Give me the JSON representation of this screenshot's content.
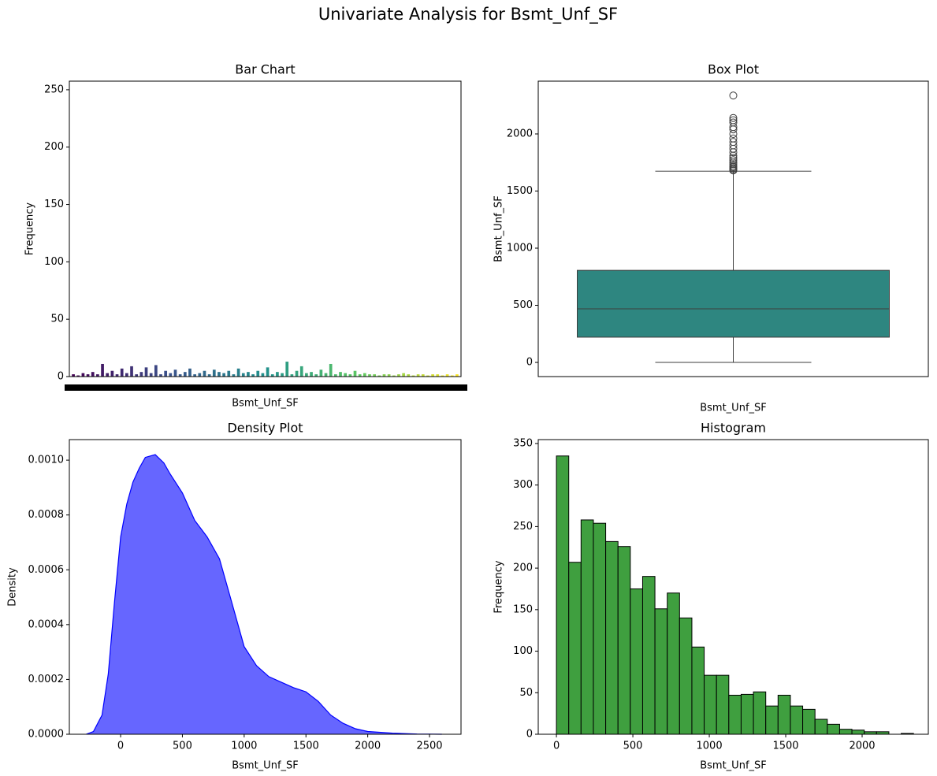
{
  "title": "Univariate Analysis for Bsmt_Unf_SF",
  "chart_data": [
    {
      "type": "bar",
      "title": "Bar Chart",
      "xlabel": "Bsmt_Unf_SF",
      "ylabel": "Frequency",
      "colormap": [
        "#440154",
        "#3b528b",
        "#21918c",
        "#5ec962",
        "#fde725"
      ],
      "categories": [
        null,
        null,
        null,
        null,
        null,
        null,
        null,
        null,
        null,
        null,
        null,
        null,
        null,
        null,
        null,
        null,
        null,
        null,
        null,
        null,
        null,
        null,
        null,
        null,
        null,
        null,
        null,
        null,
        null,
        null,
        null,
        null,
        null,
        null,
        null,
        null,
        null,
        null,
        null,
        null,
        null,
        null,
        null,
        null,
        null,
        null,
        null,
        null,
        null,
        null,
        null,
        null,
        null,
        null,
        null,
        null,
        null,
        null,
        null,
        null,
        null,
        null,
        null,
        null,
        null,
        null,
        null,
        null,
        null,
        null,
        null,
        null,
        null,
        null,
        null,
        null,
        null,
        null,
        null,
        null
      ],
      "values": [
        2,
        1,
        3,
        2,
        4,
        2,
        11,
        3,
        5,
        2,
        7,
        3,
        9,
        2,
        4,
        8,
        3,
        10,
        2,
        5,
        3,
        6,
        2,
        4,
        7,
        2,
        3,
        5,
        2,
        6,
        4,
        3,
        5,
        2,
        7,
        3,
        4,
        2,
        5,
        3,
        8,
        2,
        4,
        3,
        13,
        2,
        5,
        9,
        3,
        4,
        2,
        6,
        3,
        11,
        2,
        4,
        3,
        2,
        5,
        2,
        3,
        2,
        2,
        1,
        2,
        2,
        1,
        2,
        3,
        2,
        1,
        2,
        2,
        1,
        2,
        2,
        1,
        2,
        1,
        2
      ],
      "ylim": [
        0,
        257.5
      ],
      "yticks": [
        0,
        50,
        100,
        150,
        200,
        250
      ]
    },
    {
      "type": "box",
      "title": "Box Plot",
      "xlabel": "Bsmt_Unf_SF",
      "ylabel": "Bsmt_Unf_SF",
      "color": "#2e8680",
      "whisker_low": 0,
      "q1": 221,
      "median": 469,
      "q3": 806,
      "whisker_high": 1674,
      "outliers": [
        1680,
        1690,
        1700,
        1710,
        1720,
        1735,
        1750,
        1770,
        1790,
        1810,
        1840,
        1870,
        1900,
        1930,
        1960,
        2000,
        2040,
        2060,
        2100,
        2120,
        2140,
        2336
      ],
      "ylim": [
        -124,
        2462
      ],
      "yticks": [
        0,
        500,
        1000,
        1500,
        2000
      ]
    },
    {
      "type": "density",
      "title": "Density Plot",
      "xlabel": "Bsmt_Unf_SF",
      "ylabel": "Density",
      "color": "#0000ff",
      "x": [
        -280,
        -220,
        -150,
        -100,
        -50,
        0,
        50,
        100,
        150,
        200,
        280,
        350,
        400,
        500,
        600,
        700,
        800,
        900,
        1000,
        1100,
        1200,
        1300,
        1400,
        1500,
        1600,
        1700,
        1800,
        1900,
        2000,
        2200,
        2400,
        2600
      ],
      "y": [
        0,
        1e-05,
        7e-05,
        0.00022,
        0.00048,
        0.00072,
        0.00084,
        0.00092,
        0.00097,
        0.00101,
        0.00102,
        0.00099,
        0.00095,
        0.00088,
        0.00078,
        0.00072,
        0.00064,
        0.00048,
        0.00032,
        0.00025,
        0.00021,
        0.00019,
        0.00017,
        0.000155,
        0.00012,
        7e-05,
        4e-05,
        2e-05,
        1e-05,
        4e-06,
        1e-06,
        0
      ],
      "xlim": [
        -415,
        2755
      ],
      "xticks": [
        0,
        500,
        1000,
        1500,
        2000,
        2500
      ],
      "ylim": [
        0,
        0.001075
      ],
      "yticks": [
        {
          "value": 0,
          "label": "0.0000"
        },
        {
          "value": 0.0002,
          "label": "0.0002"
        },
        {
          "value": 0.0004,
          "label": "0.0004"
        },
        {
          "value": 0.0006,
          "label": "0.0006"
        },
        {
          "value": 0.0008,
          "label": "0.0008"
        },
        {
          "value": 0.001,
          "label": "0.0010"
        }
      ]
    },
    {
      "type": "histogram",
      "title": "Histogram",
      "xlabel": "Bsmt_Unf_SF",
      "ylabel": "Frequency",
      "color": "#3f9f3f",
      "bins": [
        0,
        80.6,
        161.1,
        241.7,
        322.2,
        402.8,
        483.3,
        563.9,
        644.4,
        725,
        805.5,
        886.1,
        966.6,
        1047.2,
        1127.7,
        1208.3,
        1288.8,
        1369.4,
        1449.9,
        1530.5,
        1611,
        1691.6,
        1772.1,
        1852.7,
        1933.2,
        2013.8,
        2094.3,
        2174.9,
        2255.4,
        2336
      ],
      "values": [
        335,
        207,
        258,
        254,
        232,
        226,
        175,
        190,
        151,
        170,
        140,
        105,
        71,
        71,
        47,
        48,
        51,
        34,
        47,
        34,
        30,
        18,
        12,
        6,
        5,
        3,
        3,
        0,
        1
      ],
      "xlim": [
        -119,
        2433
      ],
      "xticks": [
        0,
        500,
        1000,
        1500,
        2000
      ],
      "ylim": [
        0,
        354.7
      ],
      "yticks": [
        0,
        50,
        100,
        150,
        200,
        250,
        300,
        350
      ]
    }
  ]
}
